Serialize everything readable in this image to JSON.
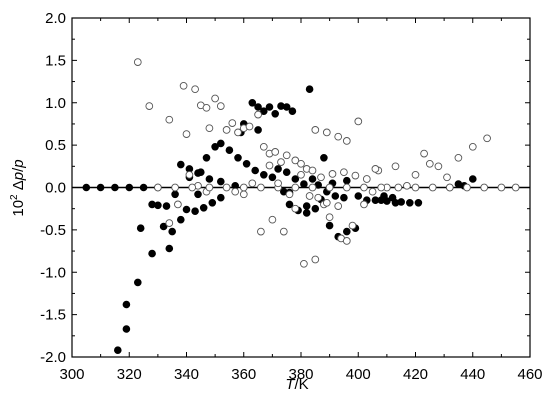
{
  "chart_data": {
    "type": "scatter",
    "title": "",
    "xlabel": "T/K",
    "ylabel": "10^2 Δp/p",
    "xlim": [
      300,
      460
    ],
    "ylim": [
      -2.0,
      2.0
    ],
    "xticks": [
      "300",
      "320",
      "340",
      "360",
      "380",
      "400",
      "420",
      "440",
      "460"
    ],
    "yticks": [
      "-2.0",
      "-1.5",
      "-1.0",
      "-0.5",
      "0.0",
      "0.5",
      "1.0",
      "1.5",
      "2.0"
    ],
    "grid": false,
    "legend": "none",
    "zero_line": 0.0,
    "series": [
      {
        "marker": "filled-circle",
        "color": "#000000",
        "points": [
          [
            305,
            0.0
          ],
          [
            310,
            0.0
          ],
          [
            315,
            0.0
          ],
          [
            320,
            0.0
          ],
          [
            325,
            0.0
          ],
          [
            330,
            0.0
          ],
          [
            316,
            -1.92
          ],
          [
            319,
            -1.67
          ],
          [
            319,
            -1.38
          ],
          [
            323,
            -1.12
          ],
          [
            328,
            -0.78
          ],
          [
            324,
            -0.48
          ],
          [
            334,
            -0.72
          ],
          [
            332,
            -0.46
          ],
          [
            335,
            -0.52
          ],
          [
            338,
            -0.38
          ],
          [
            340,
            -0.26
          ],
          [
            343,
            -0.28
          ],
          [
            346,
            -0.24
          ],
          [
            349,
            -0.18
          ],
          [
            352,
            -0.12
          ],
          [
            328,
            -0.2
          ],
          [
            330,
            -0.21
          ],
          [
            333,
            -0.22
          ],
          [
            336,
            -0.08
          ],
          [
            344,
            -0.08
          ],
          [
            338,
            0.27
          ],
          [
            341,
            0.22
          ],
          [
            344,
            0.17
          ],
          [
            347,
            0.35
          ],
          [
            350,
            0.48
          ],
          [
            352,
            0.52
          ],
          [
            355,
            0.44
          ],
          [
            358,
            0.35
          ],
          [
            361,
            0.28
          ],
          [
            364,
            0.2
          ],
          [
            348,
            0.1
          ],
          [
            352,
            0.07
          ],
          [
            357,
            0.02
          ],
          [
            341,
            0.12
          ],
          [
            345,
            0.18
          ],
          [
            360,
            0.75
          ],
          [
            363,
            1.0
          ],
          [
            365,
            0.95
          ],
          [
            367,
            0.9
          ],
          [
            369,
            0.95
          ],
          [
            371,
            0.87
          ],
          [
            373,
            0.96
          ],
          [
            375,
            0.95
          ],
          [
            377,
            0.9
          ],
          [
            383,
            1.16
          ],
          [
            359,
            0.65
          ],
          [
            365,
            0.68
          ],
          [
            367,
            0.15
          ],
          [
            370,
            0.12
          ],
          [
            372,
            0.22
          ],
          [
            375,
            0.18
          ],
          [
            378,
            0.1
          ],
          [
            381,
            0.04
          ],
          [
            384,
            0.1
          ],
          [
            386,
            0.03
          ],
          [
            389,
            -0.05
          ],
          [
            392,
            -0.1
          ],
          [
            395,
            -0.12
          ],
          [
            374,
            -0.05
          ],
          [
            376,
            -0.06
          ],
          [
            379,
            -0.27
          ],
          [
            382,
            -0.22
          ],
          [
            385,
            -0.25
          ],
          [
            387,
            -0.14
          ],
          [
            390,
            -0.45
          ],
          [
            393,
            -0.58
          ],
          [
            396,
            -0.52
          ],
          [
            399,
            -0.48
          ],
          [
            376,
            -0.2
          ],
          [
            382,
            -0.3
          ],
          [
            388,
            0.35
          ],
          [
            391,
            0.05
          ],
          [
            396,
            0.08
          ],
          [
            400,
            -0.1
          ],
          [
            403,
            -0.15
          ],
          [
            406,
            -0.15
          ],
          [
            408,
            -0.15
          ],
          [
            410,
            -0.16
          ],
          [
            413,
            -0.18
          ],
          [
            415,
            -0.17
          ],
          [
            418,
            -0.18
          ],
          [
            421,
            -0.18
          ],
          [
            432,
            0.0
          ],
          [
            437,
            0.02
          ],
          [
            440,
            0.1
          ],
          [
            435,
            0.04
          ],
          [
            409,
            -0.1
          ],
          [
            412,
            -0.12
          ]
        ]
      },
      {
        "marker": "open-circle",
        "color": "#000000",
        "points": [
          [
            323,
            1.48
          ],
          [
            327,
            0.96
          ],
          [
            334,
            0.8
          ],
          [
            339,
            1.2
          ],
          [
            343,
            1.16
          ],
          [
            340,
            0.63
          ],
          [
            345,
            0.97
          ],
          [
            347,
            0.94
          ],
          [
            348,
            0.7
          ],
          [
            350,
            1.05
          ],
          [
            352,
            0.96
          ],
          [
            354,
            0.68
          ],
          [
            356,
            0.76
          ],
          [
            358,
            0.65
          ],
          [
            360,
            0.7
          ],
          [
            362,
            0.72
          ],
          [
            365,
            0.86
          ],
          [
            367,
            0.48
          ],
          [
            369,
            0.4
          ],
          [
            371,
            0.42
          ],
          [
            373,
            0.3
          ],
          [
            375,
            0.38
          ],
          [
            378,
            0.32
          ],
          [
            380,
            0.28
          ],
          [
            382,
            0.22
          ],
          [
            385,
            0.68
          ],
          [
            389,
            0.65
          ],
          [
            393,
            0.6
          ],
          [
            396,
            0.55
          ],
          [
            400,
            0.78
          ],
          [
            334,
            -0.42
          ],
          [
            337,
            -0.2
          ],
          [
            341,
            0.15
          ],
          [
            344,
            0.02
          ],
          [
            347,
            -0.05
          ],
          [
            357,
            -0.05
          ],
          [
            360,
            -0.08
          ],
          [
            363,
            0.05
          ],
          [
            366,
            -0.52
          ],
          [
            370,
            -0.38
          ],
          [
            374,
            -0.52
          ],
          [
            378,
            -0.25
          ],
          [
            381,
            -0.9
          ],
          [
            385,
            -0.85
          ],
          [
            388,
            -0.2
          ],
          [
            390,
            -0.35
          ],
          [
            394,
            -0.6
          ],
          [
            396,
            -0.63
          ],
          [
            398,
            -0.45
          ],
          [
            402,
            -0.2
          ],
          [
            405,
            -0.05
          ],
          [
            407,
            0.2
          ],
          [
            410,
            0.0
          ],
          [
            413,
            0.25
          ],
          [
            417,
            0.02
          ],
          [
            420,
            0.15
          ],
          [
            423,
            0.4
          ],
          [
            425,
            0.28
          ],
          [
            428,
            0.25
          ],
          [
            431,
            0.12
          ],
          [
            435,
            0.35
          ],
          [
            440,
            0.48
          ],
          [
            445,
            0.58
          ],
          [
            330,
            0.0
          ],
          [
            336,
            0.0
          ],
          [
            342,
            0.0
          ],
          [
            348,
            0.0
          ],
          [
            354,
            0.0
          ],
          [
            360,
            0.0
          ],
          [
            366,
            0.0
          ],
          [
            372,
            0.0
          ],
          [
            378,
            0.0
          ],
          [
            384,
            0.0
          ],
          [
            390,
            0.0
          ],
          [
            396,
            0.0
          ],
          [
            402,
            0.0
          ],
          [
            408,
            0.0
          ],
          [
            414,
            0.0
          ],
          [
            420,
            0.0
          ],
          [
            426,
            0.0
          ],
          [
            432,
            0.0
          ],
          [
            438,
            0.0
          ],
          [
            444,
            0.0
          ],
          [
            450,
            0.0
          ],
          [
            455,
            0.0
          ],
          [
            380,
            0.15
          ],
          [
            384,
            0.2
          ],
          [
            387,
            0.12
          ],
          [
            391,
            0.16
          ],
          [
            395,
            0.18
          ],
          [
            399,
            0.14
          ],
          [
            403,
            0.1
          ],
          [
            406,
            0.22
          ],
          [
            369,
            0.26
          ],
          [
            372,
            0.05
          ],
          [
            376,
            -0.08
          ],
          [
            383,
            -0.1
          ],
          [
            386,
            -0.12
          ],
          [
            389,
            -0.18
          ],
          [
            393,
            -0.22
          ]
        ]
      }
    ]
  }
}
